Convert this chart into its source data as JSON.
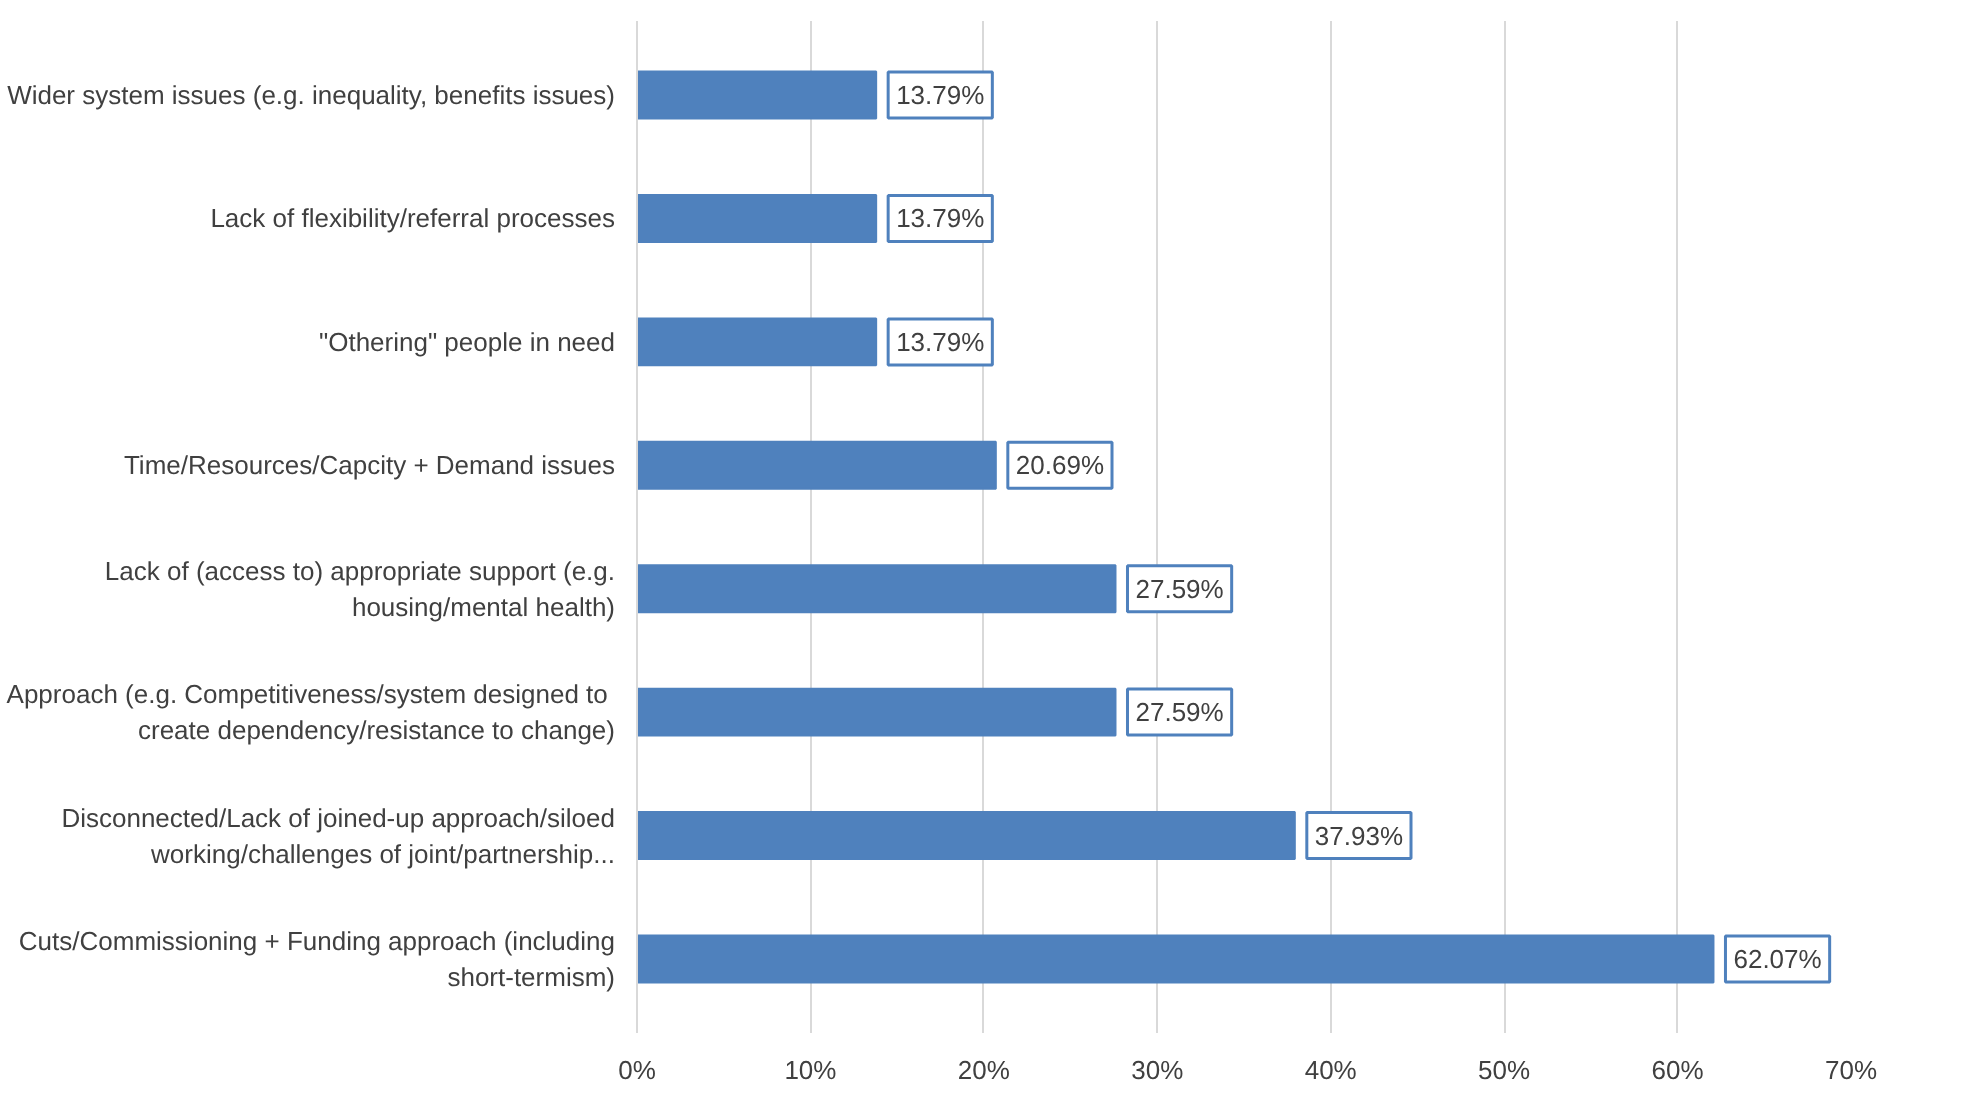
{
  "chart_data": {
    "type": "bar",
    "orientation": "horizontal",
    "categories": [
      "Wider system issues (e.g. inequality, benefits issues)",
      "Lack of flexibility/referral processes",
      "\"Othering\" people in need",
      "Time/Resources/Capcity + Demand issues",
      "Lack of (access to) appropriate support (e.g.\nhousing/mental health)",
      "Approach (e.g.  Competitiveness/system designed to\ncreate dependency/resistance to change)",
      "Disconnected/Lack of joined-up approach/siloed\nworking/challenges of joint/partnership...",
      "Cuts/Commissioning + Funding approach (including\nshort-termism)"
    ],
    "values": [
      13.79,
      13.79,
      13.79,
      20.69,
      27.59,
      27.59,
      37.93,
      62.07
    ],
    "value_labels": [
      "13.79%",
      "13.79%",
      "13.79%",
      "20.69%",
      "27.59%",
      "27.59%",
      "37.93%",
      "62.07%"
    ],
    "color": "#4f81bd",
    "xlim": [
      0,
      70
    ],
    "xticks": [
      {
        "value": 0,
        "label": "0%"
      },
      {
        "value": 10,
        "label": "10%"
      },
      {
        "value": 20,
        "label": "20%"
      },
      {
        "value": 30,
        "label": "30%"
      },
      {
        "value": 40,
        "label": "40%"
      },
      {
        "value": 50,
        "label": "50%"
      },
      {
        "value": 60,
        "label": "60%"
      },
      {
        "value": 70,
        "label": "70%"
      }
    ],
    "grid": "x"
  }
}
